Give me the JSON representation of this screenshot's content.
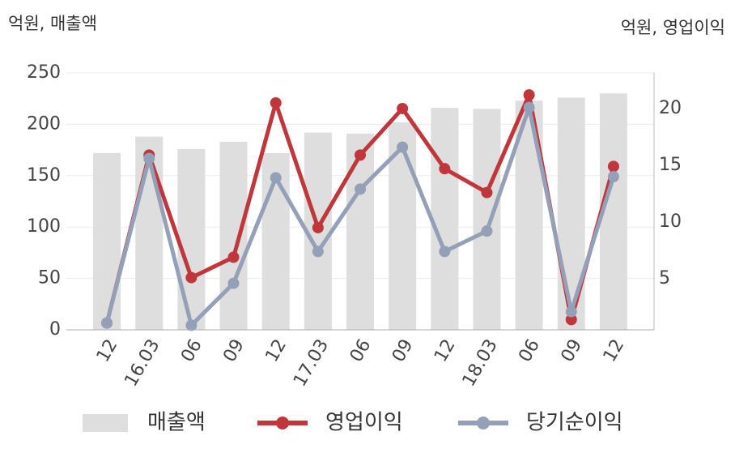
{
  "chart_data": {
    "type": "bar-line",
    "y_label": "억원, 매출액",
    "y2_label": "억원, 영업이익",
    "categories": [
      "12",
      "16.03",
      "06",
      "09",
      "12",
      "17.03",
      "06",
      "09",
      "12",
      "18.03",
      "06",
      "09",
      "12"
    ],
    "ylim": [
      0,
      250
    ],
    "yticks": [
      0,
      50,
      100,
      150,
      200,
      250
    ],
    "y2lim": [
      0.5,
      23.14
    ],
    "y2ticks": [
      5,
      10,
      15,
      20
    ],
    "grid": true,
    "series": [
      {
        "name": "매출액",
        "kind": "bar",
        "color": "#dedede",
        "values": [
          172,
          188,
          176,
          183,
          172,
          192,
          191,
          202,
          216,
          215,
          223,
          226,
          230
        ]
      },
      {
        "name": "영업이익",
        "kind": "line",
        "axis": "y2",
        "color": "#c0363a",
        "values": [
          1.1,
          15.9,
          5.1,
          6.9,
          20.5,
          9.5,
          15.9,
          20,
          14.7,
          12.6,
          21.2,
          1.4,
          14.9
        ]
      },
      {
        "name": "당기순이익",
        "kind": "line",
        "axis": "y2",
        "color": "#93a0b8",
        "values": [
          1.1,
          15.6,
          0.9,
          4.6,
          13.9,
          7.4,
          12.9,
          16.6,
          7.4,
          9.2,
          20.1,
          2.1,
          14
        ]
      }
    ]
  }
}
